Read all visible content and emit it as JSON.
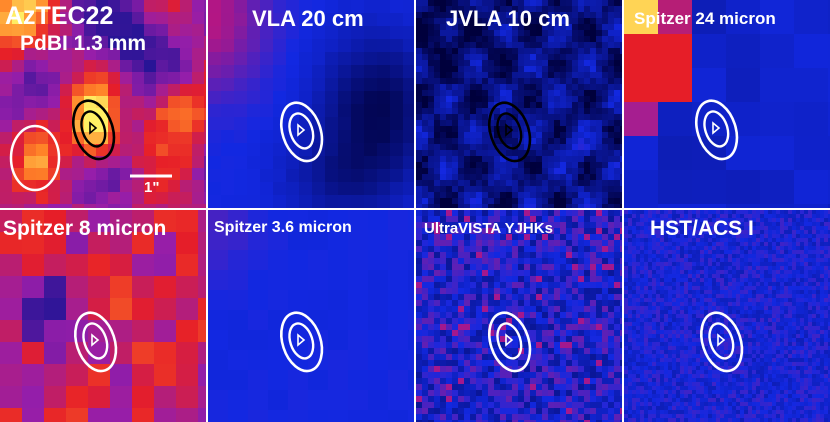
{
  "figure": {
    "panels": [
      {
        "id": "pdbi",
        "title": "AzTEC22",
        "subtitle": "PdBI 1.3 mm",
        "scale_label": "1\"",
        "colormap": "heat"
      },
      {
        "id": "vla",
        "title": "VLA 20 cm",
        "colormap": "blue"
      },
      {
        "id": "jvla",
        "title": "JVLA 10 cm",
        "colormap": "blue"
      },
      {
        "id": "irac24",
        "title": "Spitzer 24 micron",
        "colormap": "blue"
      },
      {
        "id": "irac8",
        "title": "Spitzer 8 micron",
        "colormap": "heat"
      },
      {
        "id": "irac36",
        "title": "Spitzer 3.6 micron",
        "colormap": "blue"
      },
      {
        "id": "uvista",
        "title": "UltraVISTA YJHKs",
        "colormap": "blue"
      },
      {
        "id": "hst",
        "title": "HST/ACS I",
        "colormap": "blue"
      }
    ],
    "colors": {
      "background": "#ffffff",
      "label": "#ffffff",
      "contour_dark": "#000000",
      "contour_light": "#ffffff",
      "heat_low": "#2a1a9a",
      "heat_mid": "#e8222a",
      "heat_high": "#ffee60",
      "blue_base": "#1228e0"
    }
  }
}
